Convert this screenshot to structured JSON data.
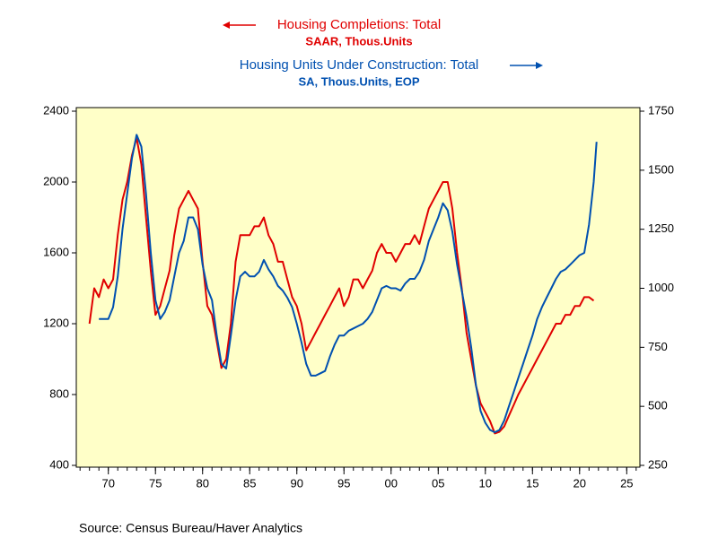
{
  "chart_data": {
    "type": "line",
    "source": "Source:  Census Bureau/Haver Analytics",
    "xlim": [
      1966.6,
      2026.4
    ],
    "xticks": [
      {
        "value": 1970,
        "label": "70"
      },
      {
        "value": 1975,
        "label": "75"
      },
      {
        "value": 1980,
        "label": "80"
      },
      {
        "value": 1985,
        "label": "85"
      },
      {
        "value": 1990,
        "label": "90"
      },
      {
        "value": 1995,
        "label": "95"
      },
      {
        "value": 2000,
        "label": "00"
      },
      {
        "value": 2005,
        "label": "05"
      },
      {
        "value": 2010,
        "label": "10"
      },
      {
        "value": 2015,
        "label": "15"
      },
      {
        "value": 2020,
        "label": "20"
      },
      {
        "value": 2025,
        "label": "25"
      }
    ],
    "ylim": [
      400,
      2400
    ],
    "yticks": [
      400,
      800,
      1200,
      1600,
      2000,
      2400
    ],
    "y2lim": [
      250,
      1750
    ],
    "y2ticks": [
      250,
      500,
      750,
      1000,
      1250,
      1500,
      1750
    ],
    "background": "#ffffc8",
    "series": [
      {
        "name": "Housing Completions: Total",
        "unit": "SAAR, Thous.Units",
        "color": "#e00000",
        "axis": "y",
        "x": [
          1968,
          1968.5,
          1969,
          1969.5,
          1970,
          1970.5,
          1971,
          1971.5,
          1972,
          1972.5,
          1973,
          1973.5,
          1974,
          1974.5,
          1975,
          1975.5,
          1976,
          1976.5,
          1977,
          1977.5,
          1978,
          1978.5,
          1979,
          1979.5,
          1980,
          1980.5,
          1981,
          1981.5,
          1982,
          1982.5,
          1983,
          1983.5,
          1984,
          1984.5,
          1985,
          1985.5,
          1986,
          1986.5,
          1987,
          1987.5,
          1988,
          1988.5,
          1989,
          1989.5,
          1990,
          1990.5,
          1991,
          1991.5,
          1992,
          1992.5,
          1993,
          1993.5,
          1994,
          1994.5,
          1995,
          1995.5,
          1996,
          1996.5,
          1997,
          1997.5,
          1998,
          1998.5,
          1999,
          1999.5,
          2000,
          2000.5,
          2001,
          2001.5,
          2002,
          2002.5,
          2003,
          2003.5,
          2004,
          2004.5,
          2005,
          2005.5,
          2006,
          2006.5,
          2007,
          2007.5,
          2008,
          2008.5,
          2009,
          2009.5,
          2010,
          2010.5,
          2011,
          2011.5,
          2012,
          2012.5,
          2013,
          2013.5,
          2014,
          2014.5,
          2015,
          2015.5,
          2016,
          2016.5,
          2017,
          2017.5,
          2018,
          2018.5,
          2019,
          2019.5,
          2020,
          2020.5,
          2021,
          2021.5
        ],
        "values": [
          1200,
          1400,
          1350,
          1450,
          1400,
          1450,
          1700,
          1900,
          2000,
          2150,
          2250,
          2100,
          1800,
          1500,
          1250,
          1300,
          1400,
          1500,
          1700,
          1850,
          1900,
          1950,
          1900,
          1850,
          1550,
          1300,
          1250,
          1100,
          950,
          1000,
          1200,
          1550,
          1700,
          1700,
          1700,
          1750,
          1750,
          1800,
          1700,
          1650,
          1550,
          1550,
          1450,
          1350,
          1300,
          1200,
          1050,
          1100,
          1150,
          1200,
          1250,
          1300,
          1350,
          1400,
          1300,
          1350,
          1450,
          1450,
          1400,
          1450,
          1500,
          1600,
          1650,
          1600,
          1600,
          1550,
          1600,
          1650,
          1650,
          1700,
          1650,
          1750,
          1850,
          1900,
          1950,
          2000,
          2000,
          1850,
          1600,
          1400,
          1150,
          1000,
          850,
          750,
          700,
          650,
          580,
          590,
          620,
          680,
          740,
          800,
          850,
          900,
          950,
          1000,
          1050,
          1100,
          1150,
          1200,
          1200,
          1250,
          1250,
          1300,
          1300,
          1350,
          1350,
          1330
        ]
      },
      {
        "name": "Housing Units Under Construction: Total",
        "unit": "SA, Thous.Units, EOP",
        "color": "#0050b0",
        "axis": "y2",
        "x": [
          1969,
          1969.5,
          1970,
          1970.5,
          1971,
          1971.5,
          1972,
          1972.5,
          1973,
          1973.5,
          1974,
          1974.5,
          1975,
          1975.5,
          1976,
          1976.5,
          1977,
          1977.5,
          1978,
          1978.5,
          1979,
          1979.5,
          1980,
          1980.5,
          1981,
          1981.5,
          1982,
          1982.5,
          1983,
          1983.5,
          1984,
          1984.5,
          1985,
          1985.5,
          1986,
          1986.5,
          1987,
          1987.5,
          1988,
          1988.5,
          1989,
          1989.5,
          1990,
          1990.5,
          1991,
          1991.5,
          1992,
          1992.5,
          1993,
          1993.5,
          1994,
          1994.5,
          1995,
          1995.5,
          1996,
          1996.5,
          1997,
          1997.5,
          1998,
          1998.5,
          1999,
          1999.5,
          2000,
          2000.5,
          2001,
          2001.5,
          2002,
          2002.5,
          2003,
          2003.5,
          2004,
          2004.5,
          2005,
          2005.5,
          2006,
          2006.5,
          2007,
          2007.5,
          2008,
          2008.5,
          2009,
          2009.5,
          2010,
          2010.5,
          2011,
          2011.5,
          2012,
          2012.5,
          2013,
          2013.5,
          2014,
          2014.5,
          2015,
          2015.5,
          2016,
          2016.5,
          2017,
          2017.5,
          2018,
          2018.5,
          2019,
          2019.5,
          2020,
          2020.5,
          2021,
          2021.5,
          2021.8
        ],
        "values": [
          870,
          870,
          870,
          920,
          1050,
          1250,
          1400,
          1550,
          1650,
          1600,
          1400,
          1150,
          950,
          870,
          900,
          950,
          1050,
          1150,
          1200,
          1300,
          1300,
          1250,
          1100,
          1000,
          950,
          800,
          680,
          660,
          800,
          950,
          1050,
          1070,
          1050,
          1050,
          1070,
          1120,
          1080,
          1050,
          1010,
          990,
          960,
          920,
          850,
          770,
          680,
          630,
          630,
          640,
          650,
          710,
          760,
          800,
          800,
          820,
          830,
          840,
          850,
          870,
          900,
          950,
          1000,
          1010,
          1000,
          1000,
          990,
          1020,
          1040,
          1040,
          1070,
          1120,
          1200,
          1250,
          1300,
          1360,
          1330,
          1240,
          1100,
          990,
          880,
          750,
          590,
          480,
          430,
          400,
          390,
          400,
          440,
          500,
          560,
          620,
          680,
          740,
          800,
          870,
          920,
          960,
          1000,
          1040,
          1070,
          1080,
          1100,
          1120,
          1140,
          1150,
          1270,
          1450,
          1620
        ]
      }
    ]
  }
}
